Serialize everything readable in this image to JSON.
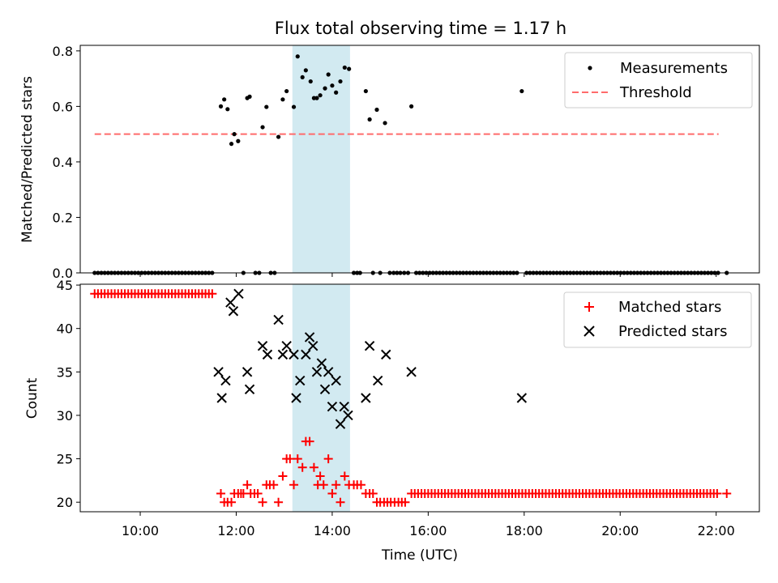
{
  "chart_data": [
    {
      "type": "scatter",
      "title": "Flux total observing time = 1.17 h",
      "xlabel": "",
      "ylabel": "Matched/Predicted stars",
      "xlim": [
        8.75,
        22.9
      ],
      "ylim": [
        0,
        0.82
      ],
      "y_ticks": [
        0.0,
        0.2,
        0.4,
        0.6,
        0.8
      ],
      "y_tick_labels": [
        "0.0",
        "0.2",
        "0.4",
        "0.6",
        "0.8"
      ],
      "x_ticks": [
        10,
        12,
        14,
        16,
        18,
        20,
        22
      ],
      "show_x_tick_labels": false,
      "highlight_span": [
        13.17,
        14.37
      ],
      "highlight_color": "#add8e6",
      "legend": {
        "position": "upper right",
        "entries": [
          "Measurements",
          "Threshold"
        ]
      },
      "threshold": {
        "name": "Threshold",
        "value": 0.5,
        "x_range": [
          9.05,
          22.05
        ],
        "color": "#ff6b6b",
        "style": "dashed"
      },
      "series": [
        {
          "name": "Measurements",
          "marker": "dot",
          "color": "#000000",
          "points": [
            [
              11.68,
              0.6
            ],
            [
              11.75,
              0.625
            ],
            [
              11.82,
              0.59
            ],
            [
              11.9,
              0.465
            ],
            [
              11.96,
              0.5
            ],
            [
              12.04,
              0.475
            ],
            [
              12.23,
              0.63
            ],
            [
              12.28,
              0.635
            ],
            [
              12.55,
              0.525
            ],
            [
              12.63,
              0.598
            ],
            [
              12.88,
              0.49
            ],
            [
              12.97,
              0.625
            ],
            [
              13.05,
              0.655
            ],
            [
              13.2,
              0.598
            ],
            [
              13.28,
              0.78
            ],
            [
              13.38,
              0.705
            ],
            [
              13.45,
              0.73
            ],
            [
              13.55,
              0.69
            ],
            [
              13.62,
              0.63
            ],
            [
              13.68,
              0.63
            ],
            [
              13.75,
              0.64
            ],
            [
              13.85,
              0.665
            ],
            [
              13.92,
              0.715
            ],
            [
              14.0,
              0.675
            ],
            [
              14.08,
              0.65
            ],
            [
              14.17,
              0.69
            ],
            [
              14.26,
              0.74
            ],
            [
              14.35,
              0.735
            ],
            [
              14.7,
              0.655
            ],
            [
              14.78,
              0.553
            ],
            [
              14.93,
              0.588
            ],
            [
              15.1,
              0.54
            ],
            [
              15.65,
              0.6
            ],
            [
              17.95,
              0.655
            ]
          ],
          "zero_level_points": {
            "value": 0.0,
            "x": [
              9.05,
              9.12,
              9.19,
              9.26,
              9.33,
              9.4,
              9.47,
              9.54,
              9.61,
              9.68,
              9.75,
              9.82,
              9.89,
              9.96,
              10.03,
              10.1,
              10.17,
              10.24,
              10.31,
              10.38,
              10.45,
              10.52,
              10.59,
              10.66,
              10.73,
              10.8,
              10.87,
              10.94,
              11.01,
              11.08,
              11.15,
              11.22,
              11.29,
              11.36,
              11.43,
              11.5,
              12.15,
              12.4,
              12.48,
              12.72,
              12.8,
              14.45,
              14.52,
              14.58,
              14.85,
              15.0,
              15.2,
              15.28,
              15.35,
              15.42,
              15.5,
              15.58,
              15.75,
              15.82,
              15.89,
              15.96,
              16.03,
              16.1,
              16.17,
              16.24,
              16.31,
              16.38,
              16.45,
              16.52,
              16.59,
              16.66,
              16.73,
              16.8,
              16.87,
              16.94,
              17.01,
              17.08,
              17.15,
              17.22,
              17.29,
              17.36,
              17.43,
              17.5,
              17.57,
              17.64,
              17.71,
              17.78,
              17.85,
              18.05,
              18.12,
              18.19,
              18.26,
              18.33,
              18.4,
              18.47,
              18.54,
              18.61,
              18.68,
              18.75,
              18.82,
              18.89,
              18.96,
              19.03,
              19.1,
              19.17,
              19.24,
              19.31,
              19.38,
              19.45,
              19.52,
              19.59,
              19.66,
              19.73,
              19.8,
              19.87,
              19.94,
              20.01,
              20.08,
              20.15,
              20.22,
              20.29,
              20.36,
              20.43,
              20.5,
              20.57,
              20.64,
              20.71,
              20.78,
              20.85,
              20.92,
              20.99,
              21.06,
              21.13,
              21.2,
              21.27,
              21.34,
              21.41,
              21.48,
              21.55,
              21.62,
              21.69,
              21.76,
              21.83,
              21.9,
              21.97,
              22.04,
              22.22
            ]
          }
        }
      ]
    },
    {
      "type": "scatter",
      "title": "",
      "xlabel": "Time (UTC)",
      "ylabel": "Count",
      "xlim": [
        8.75,
        22.9
      ],
      "ylim": [
        18.9,
        45.1
      ],
      "y_ticks": [
        20,
        25,
        30,
        35,
        40,
        45
      ],
      "y_tick_labels": [
        "20",
        "25",
        "30",
        "35",
        "40",
        "45"
      ],
      "x_ticks": [
        10,
        12,
        14,
        16,
        18,
        20,
        22
      ],
      "x_tick_labels": [
        "10:00",
        "12:00",
        "14:00",
        "16:00",
        "18:00",
        "20:00",
        "22:00"
      ],
      "highlight_span": [
        13.17,
        14.37
      ],
      "highlight_color": "#add8e6",
      "legend": {
        "position": "upper right",
        "entries": [
          "Matched stars",
          "Predicted stars"
        ]
      },
      "series": [
        {
          "name": "Matched stars",
          "marker": "plus",
          "color": "#ff0000",
          "constant_runs": [
            {
              "value": 44,
              "x": [
                9.05,
                9.12,
                9.19,
                9.26,
                9.33,
                9.4,
                9.47,
                9.54,
                9.61,
                9.68,
                9.75,
                9.82,
                9.89,
                9.96,
                10.03,
                10.1,
                10.17,
                10.24,
                10.31,
                10.38,
                10.45,
                10.52,
                10.59,
                10.66,
                10.73,
                10.8,
                10.87,
                10.94,
                11.01,
                11.08,
                11.15,
                11.22,
                11.29,
                11.36,
                11.43,
                11.5
              ]
            },
            {
              "value": 21,
              "x": [
                15.65,
                15.72,
                15.79,
                15.86,
                15.93,
                16.0,
                16.07,
                16.14,
                16.21,
                16.28,
                16.35,
                16.42,
                16.49,
                16.56,
                16.63,
                16.7,
                16.77,
                16.84,
                16.91,
                16.98,
                17.05,
                17.12,
                17.19,
                17.26,
                17.33,
                17.4,
                17.47,
                17.54,
                17.61,
                17.68,
                17.75,
                17.82,
                17.89,
                17.96,
                18.03,
                18.1,
                18.17,
                18.24,
                18.31,
                18.38,
                18.45,
                18.52,
                18.59,
                18.66,
                18.73,
                18.8,
                18.87,
                18.94,
                19.01,
                19.08,
                19.15,
                19.22,
                19.29,
                19.36,
                19.43,
                19.5,
                19.57,
                19.64,
                19.71,
                19.78,
                19.85,
                19.92,
                19.99,
                20.06,
                20.13,
                20.2,
                20.27,
                20.34,
                20.41,
                20.48,
                20.55,
                20.62,
                20.69,
                20.76,
                20.83,
                20.9,
                20.97,
                21.04,
                21.11,
                21.18,
                21.25,
                21.32,
                21.39,
                21.46,
                21.53,
                21.6,
                21.67,
                21.74,
                21.81,
                21.88,
                21.95,
                22.02,
                22.22
              ]
            }
          ],
          "points": [
            [
              11.68,
              21
            ],
            [
              11.75,
              20
            ],
            [
              11.82,
              20
            ],
            [
              11.9,
              20
            ],
            [
              11.96,
              21
            ],
            [
              12.04,
              21
            ],
            [
              12.1,
              21
            ],
            [
              12.15,
              21
            ],
            [
              12.23,
              22
            ],
            [
              12.3,
              21
            ],
            [
              12.38,
              21
            ],
            [
              12.45,
              21
            ],
            [
              12.55,
              20
            ],
            [
              12.63,
              22
            ],
            [
              12.7,
              22
            ],
            [
              12.78,
              22
            ],
            [
              12.88,
              20
            ],
            [
              12.97,
              23
            ],
            [
              13.05,
              25
            ],
            [
              13.12,
              25
            ],
            [
              13.2,
              22
            ],
            [
              13.28,
              25
            ],
            [
              13.38,
              24
            ],
            [
              13.45,
              27
            ],
            [
              13.53,
              27
            ],
            [
              13.62,
              24
            ],
            [
              13.7,
              22
            ],
            [
              13.75,
              23
            ],
            [
              13.82,
              22
            ],
            [
              13.92,
              25
            ],
            [
              14.0,
              21
            ],
            [
              14.08,
              22
            ],
            [
              14.17,
              20
            ],
            [
              14.26,
              23
            ],
            [
              14.35,
              22
            ],
            [
              14.45,
              22
            ],
            [
              14.52,
              22
            ],
            [
              14.6,
              22
            ],
            [
              14.7,
              21
            ],
            [
              14.78,
              21
            ],
            [
              14.85,
              21
            ],
            [
              14.93,
              20
            ],
            [
              15.0,
              20
            ],
            [
              15.08,
              20
            ],
            [
              15.15,
              20
            ],
            [
              15.22,
              20
            ],
            [
              15.3,
              20
            ],
            [
              15.38,
              20
            ],
            [
              15.45,
              20
            ],
            [
              15.52,
              20
            ]
          ]
        },
        {
          "name": "Predicted stars",
          "marker": "x",
          "color": "#000000",
          "points": [
            [
              11.63,
              35
            ],
            [
              11.7,
              32
            ],
            [
              11.78,
              34
            ],
            [
              11.88,
              43
            ],
            [
              11.94,
              42
            ],
            [
              12.05,
              44
            ],
            [
              12.23,
              35
            ],
            [
              12.28,
              33
            ],
            [
              12.55,
              38
            ],
            [
              12.65,
              37
            ],
            [
              12.88,
              41
            ],
            [
              12.97,
              37
            ],
            [
              13.05,
              38
            ],
            [
              13.2,
              37
            ],
            [
              13.25,
              32
            ],
            [
              13.33,
              34
            ],
            [
              13.45,
              37
            ],
            [
              13.53,
              39
            ],
            [
              13.6,
              38
            ],
            [
              13.68,
              35
            ],
            [
              13.78,
              36
            ],
            [
              13.85,
              33
            ],
            [
              13.92,
              35
            ],
            [
              14.0,
              31
            ],
            [
              14.08,
              34
            ],
            [
              14.17,
              29
            ],
            [
              14.25,
              31
            ],
            [
              14.33,
              30
            ],
            [
              14.7,
              32
            ],
            [
              14.78,
              38
            ],
            [
              14.95,
              34
            ],
            [
              15.12,
              37
            ],
            [
              15.65,
              35
            ],
            [
              17.95,
              32
            ]
          ]
        }
      ]
    }
  ]
}
